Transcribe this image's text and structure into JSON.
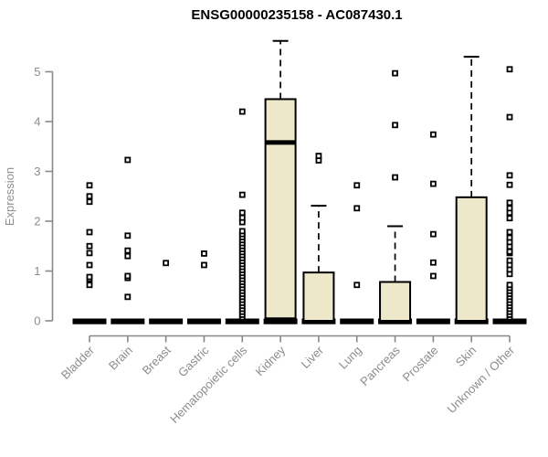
{
  "chart_data": {
    "type": "boxplot",
    "title": "ENSG00000235158 - AC087430.1",
    "ylabel": "Expression",
    "xlabel": "",
    "ylim": [
      0,
      5.65
    ],
    "yticks": [
      0,
      1,
      2,
      3,
      4,
      5
    ],
    "grid": false,
    "legend": "none",
    "colors": {
      "box_fill": "#EDE8C9",
      "box_stroke": "#000000",
      "axis": "#888888",
      "axis_text": "#8c8c8c",
      "title_text": "#000000"
    },
    "categories": [
      "Bladder",
      "Brain",
      "Breast",
      "Gastric",
      "Hematopoietic cells",
      "Kidney",
      "Liver",
      "Lung",
      "Pancreas",
      "Prostate",
      "Skin",
      "Unknown / Other"
    ],
    "boxes": [
      {
        "label": "Bladder",
        "stats": {
          "low": 0,
          "q1": 0,
          "median": 0,
          "q3": 0,
          "high": 0
        },
        "outliers": [
          0.72,
          0.84,
          0.88,
          1.12,
          1.36,
          1.5,
          1.78,
          2.39,
          2.5,
          2.72
        ]
      },
      {
        "label": "Brain",
        "stats": {
          "low": 0,
          "q1": 0,
          "median": 0,
          "q3": 0,
          "high": 0
        },
        "outliers": [
          0.48,
          0.86,
          0.9,
          1.3,
          1.41,
          1.71,
          3.23
        ]
      },
      {
        "label": "Breast",
        "stats": {
          "low": 0,
          "q1": 0,
          "median": 0,
          "q3": 0,
          "high": 0
        },
        "outliers": [
          1.16
        ]
      },
      {
        "label": "Gastric",
        "stats": {
          "low": 0,
          "q1": 0,
          "median": 0,
          "q3": 0,
          "high": 0
        },
        "outliers": [
          1.12,
          1.35
        ]
      },
      {
        "label": "Hematopoietic cells",
        "stats": {
          "low": 0,
          "q1": 0,
          "median": 0,
          "q3": 0,
          "high": 0
        },
        "outliers": [
          0.07,
          0.12,
          0.18,
          0.24,
          0.3,
          0.36,
          0.42,
          0.48,
          0.54,
          0.6,
          0.66,
          0.72,
          0.78,
          0.84,
          0.9,
          0.96,
          1.02,
          1.08,
          1.14,
          1.2,
          1.26,
          1.32,
          1.38,
          1.44,
          1.5,
          1.56,
          1.62,
          1.68,
          1.74,
          1.8,
          1.98,
          2.07,
          2.17,
          2.53,
          4.2
        ]
      },
      {
        "label": "Kidney",
        "stats": {
          "low": 0,
          "q1": 0.05,
          "median": 3.58,
          "q3": 4.45,
          "high": 5.62
        },
        "outliers": []
      },
      {
        "label": "Liver",
        "stats": {
          "low": 0,
          "q1": 0,
          "median": 0.02,
          "q3": 0.97,
          "high": 2.31
        },
        "outliers": [
          3.22,
          3.31
        ]
      },
      {
        "label": "Lung",
        "stats": {
          "low": 0,
          "q1": 0,
          "median": 0,
          "q3": 0,
          "high": 0
        },
        "outliers": [
          0.72,
          2.26,
          2.72
        ]
      },
      {
        "label": "Pancreas",
        "stats": {
          "low": 0,
          "q1": 0,
          "median": 0.02,
          "q3": 0.78,
          "high": 1.9
        },
        "outliers": [
          2.88,
          3.93,
          4.97
        ]
      },
      {
        "label": "Prostate",
        "stats": {
          "low": 0,
          "q1": 0,
          "median": 0,
          "q3": 0,
          "high": 0
        },
        "outliers": [
          0.9,
          1.17,
          1.74,
          2.75,
          3.74
        ]
      },
      {
        "label": "Skin",
        "stats": {
          "low": 0,
          "q1": 0,
          "median": 0.02,
          "q3": 2.48,
          "high": 5.3
        },
        "outliers": []
      },
      {
        "label": "Unknown / Other",
        "stats": {
          "low": 0,
          "q1": 0,
          "median": 0,
          "q3": 0,
          "high": 0
        },
        "outliers": [
          0.07,
          0.12,
          0.18,
          0.24,
          0.3,
          0.36,
          0.42,
          0.48,
          0.54,
          0.6,
          0.66,
          0.72,
          0.94,
          1.03,
          1.12,
          1.21,
          1.36,
          1.39,
          1.49,
          1.58,
          1.67,
          1.78,
          2.06,
          2.17,
          2.26,
          2.37,
          2.73,
          2.92,
          4.09,
          5.05
        ]
      }
    ]
  }
}
